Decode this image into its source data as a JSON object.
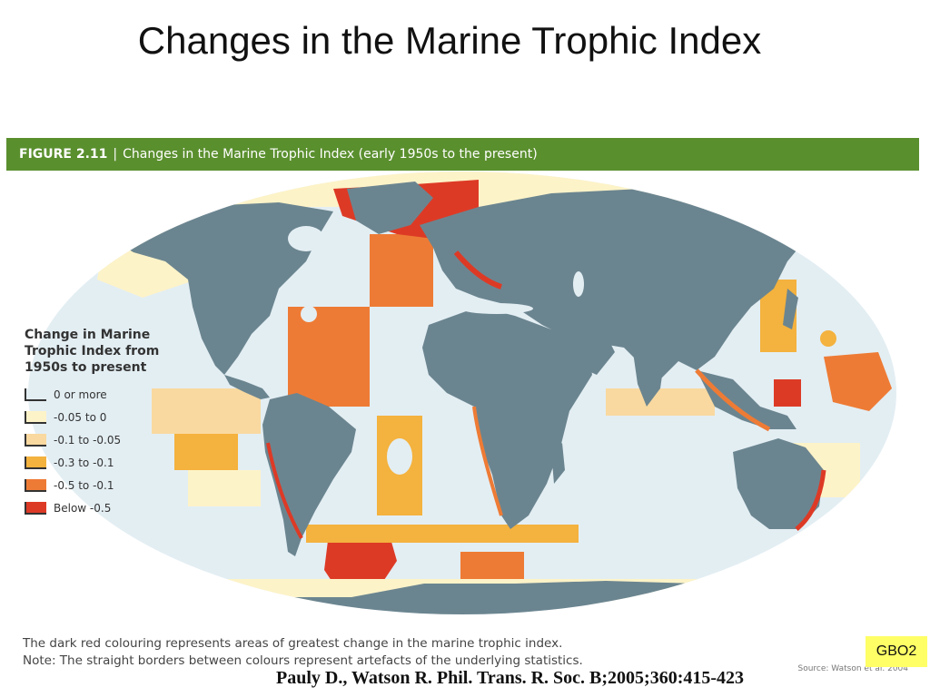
{
  "slide": {
    "title": "Changes in the Marine Trophic Index",
    "citation": "Pauly D., Watson R. Phil. Trans. R. Soc. B;2005;360:415-423",
    "badge": "GBO2"
  },
  "figure": {
    "number": "FIGURE 2.11",
    "separator": "|",
    "caption": "Changes in the Marine Trophic Index (early 1950s to the present)",
    "note_1": "The dark red colouring represents areas of greatest change in the marine trophic index.",
    "note_2": "Note: The straight borders between colours represent artefacts of the underlying statistics.",
    "source": "Source: Watson et al. 2004"
  },
  "legend": {
    "title_line1": "Change in Marine",
    "title_line2": "Trophic Index from",
    "title_line3": "1950s to present",
    "items": [
      {
        "label": "0 or more",
        "color": "#e3eef3"
      },
      {
        "label": "-0.05 to 0",
        "color": "#fdf3c8"
      },
      {
        "label": "-0.1 to -0.05",
        "color": "#f9d9a0"
      },
      {
        "label": "-0.3 to -0.1",
        "color": "#f4b23e"
      },
      {
        "label": "-0.5 to -0.1",
        "color": "#ee7b35"
      },
      {
        "label": "Below -0.5",
        "color": "#dd3a26"
      }
    ]
  },
  "colors": {
    "ocean": "#e3eef3",
    "land": "#6b8590",
    "header": "#5a8f2e"
  }
}
